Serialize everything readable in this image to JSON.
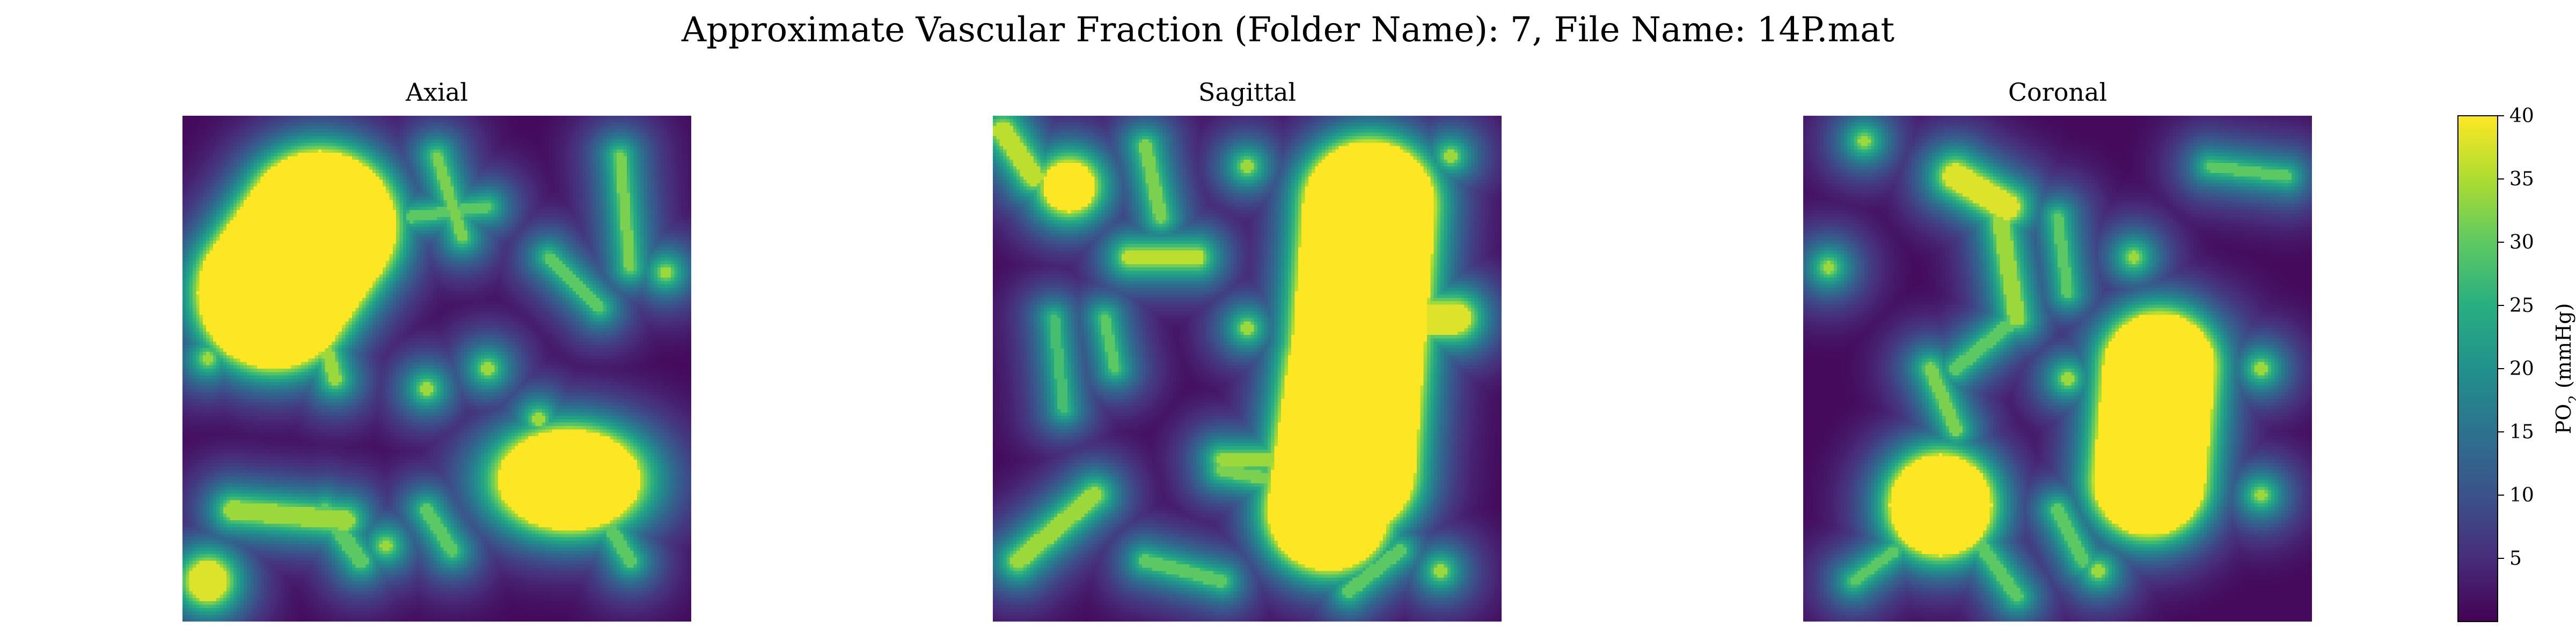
{
  "chart_data": {
    "type": "heatmap",
    "title": "Approximate Vascular Fraction (Folder Name): 7, File Name: 14P.mat",
    "colormap": "viridis",
    "color_range": [
      0,
      40
    ],
    "colorbar": {
      "label": "PO",
      "label_subscript": "2",
      "label_unit": " (mmHg)",
      "ticks": [
        5,
        10,
        15,
        20,
        25,
        30,
        35,
        40
      ],
      "tick_labels": [
        "5",
        "10",
        "15",
        "20",
        "25",
        "30",
        "35",
        "40"
      ]
    },
    "grid": false,
    "axes_visible": false,
    "panels": [
      {
        "title": "Axial",
        "vessels": [
          {
            "type": "seg",
            "p": [
              [
                0.18,
                0.35
              ],
              [
                0.27,
                0.22
              ]
            ],
            "w": 0.15,
            "v": 40
          },
          {
            "type": "blob",
            "c": [
              0.76,
              0.72
            ],
            "r": [
              0.14,
              0.1
            ],
            "v": 40
          },
          {
            "type": "blob",
            "c": [
              0.05,
              0.92
            ],
            "r": [
              0.04,
              0.04
            ],
            "v": 38
          },
          {
            "type": "seg",
            "p": [
              [
                0.1,
                0.78
              ],
              [
                0.32,
                0.8
              ]
            ],
            "w": 0.018,
            "v": 34
          },
          {
            "type": "seg",
            "p": [
              [
                0.28,
                0.78
              ],
              [
                0.35,
                0.88
              ]
            ],
            "w": 0.014,
            "v": 30
          },
          {
            "type": "seg",
            "p": [
              [
                0.48,
                0.78
              ],
              [
                0.53,
                0.86
              ]
            ],
            "w": 0.012,
            "v": 30
          },
          {
            "type": "seg",
            "p": [
              [
                0.82,
                0.78
              ],
              [
                0.88,
                0.88
              ]
            ],
            "w": 0.012,
            "v": 30
          },
          {
            "type": "seg",
            "p": [
              [
                0.28,
                0.45
              ],
              [
                0.3,
                0.52
              ]
            ],
            "w": 0.012,
            "v": 34
          },
          {
            "type": "seg",
            "p": [
              [
                0.5,
                0.08
              ],
              [
                0.55,
                0.24
              ]
            ],
            "w": 0.01,
            "v": 32
          },
          {
            "type": "seg",
            "p": [
              [
                0.86,
                0.08
              ],
              [
                0.88,
                0.3
              ]
            ],
            "w": 0.01,
            "v": 32
          },
          {
            "type": "seg",
            "p": [
              [
                0.72,
                0.28
              ],
              [
                0.82,
                0.38
              ]
            ],
            "w": 0.01,
            "v": 30
          },
          {
            "type": "seg",
            "p": [
              [
                0.45,
                0.2
              ],
              [
                0.6,
                0.18
              ]
            ],
            "w": 0.01,
            "v": 30
          },
          {
            "type": "blob",
            "c": [
              0.6,
              0.5
            ],
            "r": [
              0.012,
              0.012
            ],
            "v": 34
          },
          {
            "type": "blob",
            "c": [
              0.7,
              0.6
            ],
            "r": [
              0.012,
              0.012
            ],
            "v": 34
          },
          {
            "type": "blob",
            "c": [
              0.05,
              0.48
            ],
            "r": [
              0.012,
              0.012
            ],
            "v": 34
          },
          {
            "type": "blob",
            "c": [
              0.48,
              0.54
            ],
            "r": [
              0.012,
              0.012
            ],
            "v": 34
          },
          {
            "type": "blob",
            "c": [
              0.95,
              0.31
            ],
            "r": [
              0.012,
              0.012
            ],
            "v": 34
          },
          {
            "type": "blob",
            "c": [
              0.4,
              0.85
            ],
            "r": [
              0.012,
              0.012
            ],
            "v": 34
          }
        ]
      },
      {
        "title": "Sagittal",
        "vessels": [
          {
            "type": "seg",
            "p": [
              [
                0.74,
                0.18
              ],
              [
                0.7,
                0.7
              ]
            ],
            "w": 0.13,
            "v": 40
          },
          {
            "type": "seg",
            "p": [
              [
                0.7,
                0.5
              ],
              [
                0.66,
                0.78
              ]
            ],
            "w": 0.12,
            "v": 40
          },
          {
            "type": "seg",
            "p": [
              [
                0.74,
                0.4
              ],
              [
                0.91,
                0.4
              ]
            ],
            "w": 0.03,
            "v": 38
          },
          {
            "type": "seg",
            "p": [
              [
                0.74,
                0.4
              ],
              [
                0.72,
                0.62
              ]
            ],
            "w": 0.03,
            "v": 38
          },
          {
            "type": "blob",
            "c": [
              0.15,
              0.14
            ],
            "r": [
              0.05,
              0.05
            ],
            "v": 40
          },
          {
            "type": "seg",
            "p": [
              [
                0.02,
                0.03
              ],
              [
                0.08,
                0.12
              ]
            ],
            "w": 0.018,
            "v": 36
          },
          {
            "type": "seg",
            "p": [
              [
                0.27,
                0.28
              ],
              [
                0.4,
                0.28
              ]
            ],
            "w": 0.015,
            "v": 36
          },
          {
            "type": "seg",
            "p": [
              [
                0.3,
                0.06
              ],
              [
                0.33,
                0.2
              ]
            ],
            "w": 0.012,
            "v": 32
          },
          {
            "type": "seg",
            "p": [
              [
                0.05,
                0.88
              ],
              [
                0.2,
                0.75
              ]
            ],
            "w": 0.016,
            "v": 34
          },
          {
            "type": "seg",
            "p": [
              [
                0.45,
                0.68
              ],
              [
                0.62,
                0.68
              ]
            ],
            "w": 0.012,
            "v": 34
          },
          {
            "type": "seg",
            "p": [
              [
                0.45,
                0.7
              ],
              [
                0.55,
                0.72
              ]
            ],
            "w": 0.012,
            "v": 32
          },
          {
            "type": "seg",
            "p": [
              [
                0.3,
                0.88
              ],
              [
                0.45,
                0.92
              ]
            ],
            "w": 0.012,
            "v": 30
          },
          {
            "type": "seg",
            "p": [
              [
                0.7,
                0.94
              ],
              [
                0.8,
                0.86
              ]
            ],
            "w": 0.012,
            "v": 30
          },
          {
            "type": "seg",
            "p": [
              [
                0.12,
                0.4
              ],
              [
                0.14,
                0.58
              ]
            ],
            "w": 0.01,
            "v": 28
          },
          {
            "type": "seg",
            "p": [
              [
                0.22,
                0.4
              ],
              [
                0.24,
                0.5
              ]
            ],
            "w": 0.01,
            "v": 30
          },
          {
            "type": "blob",
            "c": [
              0.9,
              0.08
            ],
            "r": [
              0.012,
              0.012
            ],
            "v": 34
          },
          {
            "type": "blob",
            "c": [
              0.5,
              0.1
            ],
            "r": [
              0.012,
              0.012
            ],
            "v": 34
          },
          {
            "type": "blob",
            "c": [
              0.88,
              0.9
            ],
            "r": [
              0.012,
              0.012
            ],
            "v": 34
          },
          {
            "type": "blob",
            "c": [
              0.5,
              0.42
            ],
            "r": [
              0.012,
              0.012
            ],
            "v": 34
          }
        ]
      },
      {
        "title": "Coronal",
        "vessels": [
          {
            "type": "seg",
            "p": [
              [
                0.7,
                0.5
              ],
              [
                0.68,
                0.72
              ]
            ],
            "w": 0.11,
            "v": 40
          },
          {
            "type": "blob",
            "c": [
              0.7,
              0.47
            ],
            "r": [
              0.09,
              0.07
            ],
            "v": 40
          },
          {
            "type": "blob",
            "c": [
              0.27,
              0.77
            ],
            "r": [
              0.1,
              0.1
            ],
            "v": 40
          },
          {
            "type": "seg",
            "p": [
              [
                0.3,
                0.12
              ],
              [
                0.4,
                0.18
              ]
            ],
            "w": 0.025,
            "v": 38
          },
          {
            "type": "seg",
            "p": [
              [
                0.38,
                0.16
              ],
              [
                0.42,
                0.4
              ]
            ],
            "w": 0.015,
            "v": 34
          },
          {
            "type": "seg",
            "p": [
              [
                0.42,
                0.4
              ],
              [
                0.3,
                0.5
              ]
            ],
            "w": 0.012,
            "v": 30
          },
          {
            "type": "seg",
            "p": [
              [
                0.25,
                0.5
              ],
              [
                0.3,
                0.62
              ]
            ],
            "w": 0.012,
            "v": 32
          },
          {
            "type": "seg",
            "p": [
              [
                0.35,
                0.85
              ],
              [
                0.42,
                0.95
              ]
            ],
            "w": 0.012,
            "v": 30
          },
          {
            "type": "seg",
            "p": [
              [
                0.5,
                0.78
              ],
              [
                0.55,
                0.88
              ]
            ],
            "w": 0.012,
            "v": 30
          },
          {
            "type": "seg",
            "p": [
              [
                0.1,
                0.92
              ],
              [
                0.18,
                0.86
              ]
            ],
            "w": 0.01,
            "v": 30
          },
          {
            "type": "seg",
            "p": [
              [
                0.8,
                0.1
              ],
              [
                0.95,
                0.12
              ]
            ],
            "w": 0.01,
            "v": 30
          },
          {
            "type": "seg",
            "p": [
              [
                0.5,
                0.2
              ],
              [
                0.52,
                0.35
              ]
            ],
            "w": 0.01,
            "v": 30
          },
          {
            "type": "blob",
            "c": [
              0.12,
              0.05
            ],
            "r": [
              0.012,
              0.012
            ],
            "v": 34
          },
          {
            "type": "blob",
            "c": [
              0.05,
              0.3
            ],
            "r": [
              0.012,
              0.012
            ],
            "v": 34
          },
          {
            "type": "blob",
            "c": [
              0.65,
              0.28
            ],
            "r": [
              0.012,
              0.012
            ],
            "v": 34
          },
          {
            "type": "blob",
            "c": [
              0.52,
              0.52
            ],
            "r": [
              0.012,
              0.012
            ],
            "v": 34
          },
          {
            "type": "blob",
            "c": [
              0.9,
              0.5
            ],
            "r": [
              0.012,
              0.012
            ],
            "v": 34
          },
          {
            "type": "blob",
            "c": [
              0.9,
              0.75
            ],
            "r": [
              0.012,
              0.012
            ],
            "v": 34
          },
          {
            "type": "blob",
            "c": [
              0.58,
              0.9
            ],
            "r": [
              0.012,
              0.012
            ],
            "v": 34
          }
        ]
      }
    ]
  }
}
